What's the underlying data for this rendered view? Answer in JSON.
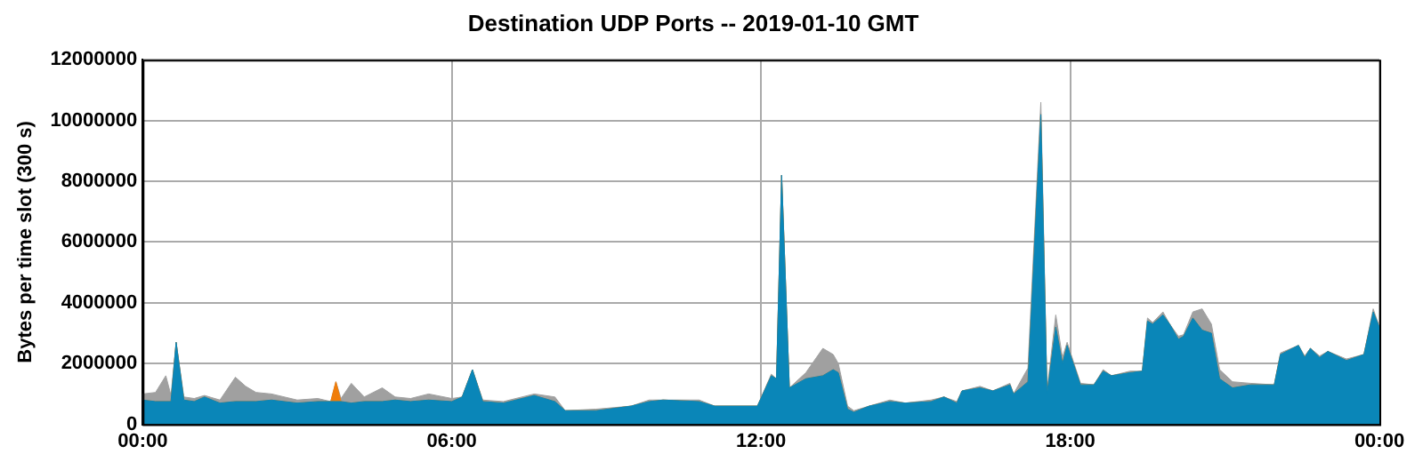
{
  "chart_data": {
    "type": "area",
    "title": "Destination UDP Ports -- 2019-01-10 GMT",
    "ylabel": "Bytes per time slot (300 s)",
    "stacked": true,
    "grid": true,
    "legend": false,
    "x": [
      0,
      0.25,
      0.45,
      0.55,
      0.65,
      0.8,
      1.0,
      1.2,
      1.5,
      1.8,
      2.0,
      2.2,
      2.5,
      3.0,
      3.4,
      3.65,
      3.75,
      3.85,
      4.05,
      4.3,
      4.65,
      4.9,
      5.2,
      5.55,
      6.0,
      6.2,
      6.4,
      6.6,
      7.0,
      7.6,
      8.0,
      8.2,
      8.8,
      9.48,
      9.83,
      10.1,
      10.8,
      11.1,
      11.93,
      12.2,
      12.3,
      12.4,
      12.55,
      12.87,
      13.2,
      13.4,
      13.5,
      13.68,
      13.8,
      14.1,
      14.5,
      14.8,
      15.3,
      15.55,
      15.8,
      15.9,
      16.25,
      16.5,
      16.83,
      16.9,
      17.18,
      17.43,
      17.55,
      17.72,
      17.85,
      17.94,
      18.2,
      18.46,
      18.64,
      18.8,
      19.16,
      19.4,
      19.5,
      19.6,
      19.8,
      19.93,
      20.1,
      20.2,
      20.38,
      20.56,
      20.74,
      20.9,
      21.15,
      21.5,
      21.96,
      22.08,
      22.43,
      22.55,
      22.66,
      22.84,
      23.0,
      23.36,
      23.7,
      23.88,
      24
    ],
    "series": [
      {
        "color": "#0a86b8",
        "values": [
          800000,
          750000,
          750000,
          750000,
          2700000,
          800000,
          750000,
          900000,
          700000,
          750000,
          750000,
          750000,
          800000,
          700000,
          750000,
          750000,
          750000,
          750000,
          700000,
          750000,
          750000,
          800000,
          750000,
          800000,
          750000,
          900000,
          1800000,
          750000,
          700000,
          950000,
          750000,
          450000,
          450000,
          600000,
          750000,
          800000,
          750000,
          600000,
          600000,
          1600000,
          1500000,
          8200000,
          1200000,
          1500000,
          1600000,
          1800000,
          1700000,
          500000,
          400000,
          600000,
          750000,
          700000,
          750000,
          900000,
          700000,
          1100000,
          1200000,
          1100000,
          1300000,
          1000000,
          1400000,
          10200000,
          1000000,
          3200000,
          2000000,
          2600000,
          1300000,
          1300000,
          1750000,
          1600000,
          1700000,
          1750000,
          3400000,
          3300000,
          3600000,
          3300000,
          2800000,
          2900000,
          3500000,
          3100000,
          3000000,
          1500000,
          1200000,
          1300000,
          1300000,
          2300000,
          2600000,
          2200000,
          2500000,
          2200000,
          2400000,
          2100000,
          2300000,
          3700000,
          3200000
        ]
      },
      {
        "color": "#f07d0a",
        "values": [
          0,
          0,
          0,
          0,
          0,
          0,
          0,
          0,
          0,
          0,
          0,
          0,
          0,
          0,
          0,
          0,
          650000,
          0,
          0,
          0,
          0,
          0,
          0,
          0,
          0,
          0,
          0,
          0,
          0,
          0,
          0,
          0,
          0,
          0,
          0,
          0,
          0,
          0,
          0,
          0,
          0,
          0,
          0,
          0,
          0,
          0,
          0,
          0,
          0,
          0,
          0,
          0,
          0,
          0,
          0,
          0,
          0,
          0,
          0,
          0,
          0,
          0,
          0,
          0,
          0,
          0,
          0,
          0,
          0,
          0,
          0,
          0,
          0,
          0,
          0,
          0,
          0,
          0,
          0,
          0,
          0,
          0,
          0,
          0,
          0,
          0,
          0,
          0,
          0,
          0,
          0,
          0,
          0,
          0,
          0
        ]
      },
      {
        "color": "#a0a0a0",
        "values": [
          200000,
          300000,
          850000,
          200000,
          0,
          100000,
          100000,
          50000,
          100000,
          800000,
          500000,
          300000,
          200000,
          100000,
          100000,
          0,
          0,
          100000,
          650000,
          150000,
          450000,
          100000,
          100000,
          200000,
          100000,
          0,
          0,
          50000,
          50000,
          50000,
          150000,
          0,
          50000,
          0,
          50000,
          0,
          50000,
          0,
          0,
          50000,
          0,
          0,
          0,
          200000,
          900000,
          500000,
          300000,
          100000,
          50000,
          0,
          50000,
          0,
          50000,
          0,
          50000,
          0,
          50000,
          0,
          50000,
          0,
          450000,
          400000,
          100000,
          400000,
          200000,
          100000,
          50000,
          0,
          50000,
          0,
          50000,
          0,
          100000,
          50000,
          100000,
          0,
          100000,
          50000,
          200000,
          700000,
          300000,
          300000,
          200000,
          50000,
          0,
          50000,
          0,
          50000,
          0,
          50000,
          0,
          50000,
          0,
          100000,
          0
        ]
      }
    ],
    "xlim": [
      0,
      24
    ],
    "xticks": [
      {
        "value": 0,
        "label": "00:00"
      },
      {
        "value": 6,
        "label": "06:00"
      },
      {
        "value": 12,
        "label": "12:00"
      },
      {
        "value": 18,
        "label": "18:00"
      },
      {
        "value": 24,
        "label": "00:00"
      }
    ],
    "ylim": [
      0,
      12000000
    ],
    "yticks": [
      0,
      2000000,
      4000000,
      6000000,
      8000000,
      10000000,
      12000000
    ]
  }
}
